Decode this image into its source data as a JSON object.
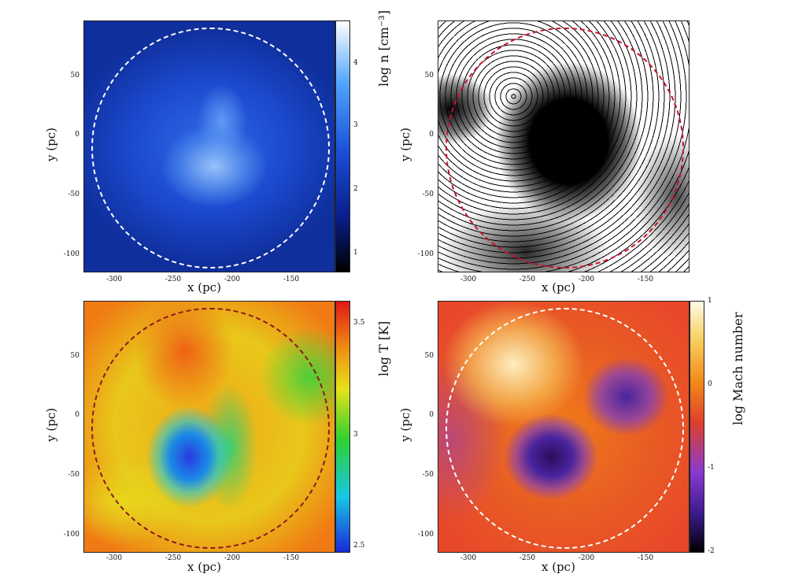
{
  "chart_data": [
    {
      "type": "heatmap",
      "title": "",
      "xlabel": "x (pc)",
      "ylabel": "y (pc)",
      "x_ticks": [
        "-300",
        "-250",
        "-200",
        "-150"
      ],
      "y_ticks": [
        "50",
        "0",
        "-50",
        "-100"
      ],
      "xlim": [
        -330,
        -117
      ],
      "ylim": [
        -115,
        95
      ],
      "colorbar_label": "log n [cm⁻³]",
      "colorbar_ticks": [
        "4",
        "3",
        "2",
        "1"
      ],
      "colorbar_range": [
        0.5,
        4.8
      ],
      "colormap": [
        "#000000",
        "#0a1e8c",
        "#1a4fd6",
        "#4fa3ff",
        "#ffffff"
      ],
      "circle_color": "#ffffff",
      "circle_center": [
        -224,
        -10
      ],
      "circle_radius": 100
    },
    {
      "type": "heatmap",
      "title": "",
      "xlabel": "x (pc)",
      "ylabel": "y (pc)",
      "x_ticks": [
        "-300",
        "-250",
        "-200",
        "-150"
      ],
      "y_ticks": [
        "50",
        "0",
        "-50",
        "-100"
      ],
      "xlim": [
        -330,
        -117
      ],
      "ylim": [
        -115,
        95
      ],
      "colormap": [
        "#ffffff",
        "#000000"
      ],
      "circle_color": "#c8102e",
      "circle_center": [
        -224,
        -10
      ],
      "circle_radius": 100
    },
    {
      "type": "heatmap",
      "title": "",
      "xlabel": "x (pc)",
      "ylabel": "y (pc)",
      "x_ticks": [
        "-300",
        "-250",
        "-200",
        "-150"
      ],
      "y_ticks": [
        "50",
        "0",
        "-50",
        "-100"
      ],
      "xlim": [
        -330,
        -117
      ],
      "ylim": [
        -115,
        95
      ],
      "colorbar_label": "log  T [K]",
      "colorbar_ticks": [
        "3.5",
        "3",
        "2.5"
      ],
      "colorbar_range": [
        2.5,
        3.65
      ],
      "colormap": [
        "#1a2ad8",
        "#17c7e6",
        "#2fd12f",
        "#e6e21a",
        "#f08a12",
        "#e01818"
      ],
      "circle_color": "#8b1a1a",
      "circle_center": [
        -224,
        -10
      ],
      "circle_radius": 100
    },
    {
      "type": "heatmap",
      "title": "",
      "xlabel": "x (pc)",
      "ylabel": "y (pc)",
      "x_ticks": [
        "-300",
        "-250",
        "-200",
        "-150"
      ],
      "y_ticks": [
        "50",
        "0",
        "-50",
        "-100"
      ],
      "xlim": [
        -330,
        -117
      ],
      "ylim": [
        -115,
        95
      ],
      "colorbar_label": "log  Mach number",
      "colorbar_ticks": [
        "1",
        "0",
        "-1",
        "-2"
      ],
      "colorbar_range": [
        -2,
        1
      ],
      "colormap": [
        "#000000",
        "#3a1a8a",
        "#8a3ad0",
        "#e0402a",
        "#f28a1a",
        "#f8d060",
        "#fffbe8"
      ],
      "circle_color": "#ffffff",
      "circle_center": [
        -224,
        -10
      ],
      "circle_radius": 100
    }
  ]
}
